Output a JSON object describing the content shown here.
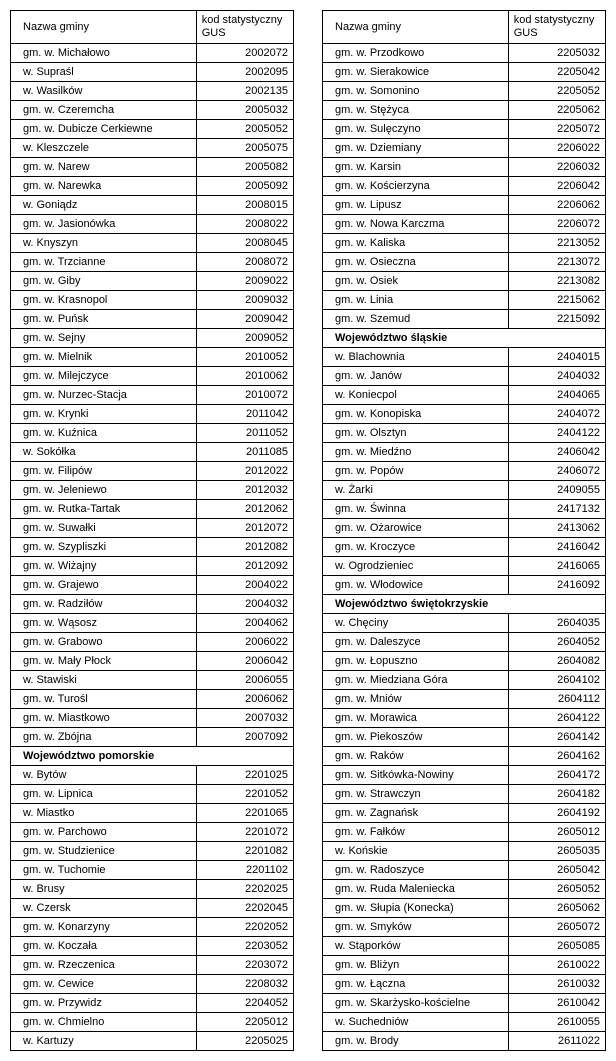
{
  "headers": {
    "name": "Nazwa gminy",
    "code": "kod statystyczny GUS"
  },
  "left": [
    {
      "name": "gm. w. Michałowo",
      "code": "2002072"
    },
    {
      "name": "w. Supraśl",
      "code": "2002095"
    },
    {
      "name": "w. Wasilków",
      "code": "2002135"
    },
    {
      "name": "gm. w. Czeremcha",
      "code": "2005032"
    },
    {
      "name": "gm. w. Dubicze Cerkiewne",
      "code": "2005052"
    },
    {
      "name": "w. Kleszczele",
      "code": "2005075"
    },
    {
      "name": "gm. w. Narew",
      "code": "2005082"
    },
    {
      "name": "gm. w. Narewka",
      "code": "2005092"
    },
    {
      "name": "w. Goniądz",
      "code": "2008015"
    },
    {
      "name": "gm. w. Jasionówka",
      "code": "2008022"
    },
    {
      "name": "w. Knyszyn",
      "code": "2008045"
    },
    {
      "name": "gm. w. Trzcianne",
      "code": "2008072"
    },
    {
      "name": "gm. w. Giby",
      "code": "2009022"
    },
    {
      "name": "gm. w. Krasnopol",
      "code": "2009032"
    },
    {
      "name": "gm. w. Puńsk",
      "code": "2009042"
    },
    {
      "name": "gm. w. Sejny",
      "code": "2009052"
    },
    {
      "name": "gm. w. Mielnik",
      "code": "2010052"
    },
    {
      "name": "gm. w. Milejczyce",
      "code": "2010062"
    },
    {
      "name": "gm. w. Nurzec-Stacja",
      "code": "2010072"
    },
    {
      "name": "gm. w. Krynki",
      "code": "2011042"
    },
    {
      "name": "gm. w. Kuźnica",
      "code": "2011052"
    },
    {
      "name": "w. Sokółka",
      "code": "2011085"
    },
    {
      "name": "gm. w. Filipów",
      "code": "2012022"
    },
    {
      "name": "gm. w. Jeleniewo",
      "code": "2012032"
    },
    {
      "name": "gm. w. Rutka-Tartak",
      "code": "2012062"
    },
    {
      "name": "gm. w. Suwałki",
      "code": "2012072"
    },
    {
      "name": "gm. w. Szypliszki",
      "code": "2012082"
    },
    {
      "name": "gm. w. Wiżajny",
      "code": "2012092"
    },
    {
      "name": "gm. w. Grajewo",
      "code": "2004022"
    },
    {
      "name": "gm. w. Radziłów",
      "code": "2004032"
    },
    {
      "name": "gm. w. Wąsosz",
      "code": "2004062"
    },
    {
      "name": "gm. w. Grabowo",
      "code": "2006022"
    },
    {
      "name": "gm. w. Mały Płock",
      "code": "2006042"
    },
    {
      "name": "w. Stawiski",
      "code": "2006055"
    },
    {
      "name": "gm. w. Turośl",
      "code": "2006062"
    },
    {
      "name": "gm. w. Miastkowo",
      "code": "2007032"
    },
    {
      "name": "gm. w. Zbójna",
      "code": "2007092"
    },
    {
      "section": "Województwo pomorskie"
    },
    {
      "name": "w. Bytów",
      "code": "2201025"
    },
    {
      "name": "gm. w. Lipnica",
      "code": "2201052"
    },
    {
      "name": "w. Miastko",
      "code": "2201065"
    },
    {
      "name": "gm. w. Parchowo",
      "code": "2201072"
    },
    {
      "name": "gm. w. Studzienice",
      "code": "2201082"
    },
    {
      "name": "gm. w. Tuchomie",
      "code": "2201102"
    },
    {
      "name": "w. Brusy",
      "code": "2202025"
    },
    {
      "name": "w. Czersk",
      "code": "2202045"
    },
    {
      "name": "gm. w. Konarzyny",
      "code": "2202052"
    },
    {
      "name": "gm. w. Koczała",
      "code": "2203052"
    },
    {
      "name": "gm. w. Rzeczenica",
      "code": "2203072"
    },
    {
      "name": "gm. w. Cewice",
      "code": "2208032"
    },
    {
      "name": "gm. w. Przywidz",
      "code": "2204052"
    },
    {
      "name": "gm. w. Chmielno",
      "code": "2205012"
    },
    {
      "name": "w. Kartuzy",
      "code": "2205025"
    }
  ],
  "right": [
    {
      "name": "gm. w. Przodkowo",
      "code": "2205032"
    },
    {
      "name": "gm. w. Sierakowice",
      "code": "2205042"
    },
    {
      "name": "gm. w. Somonino",
      "code": "2205052"
    },
    {
      "name": "gm. w. Stężyca",
      "code": "2205062"
    },
    {
      "name": "gm. w. Sulęczyno",
      "code": "2205072"
    },
    {
      "name": "gm. w. Dziemiany",
      "code": "2206022"
    },
    {
      "name": "gm. w. Karsin",
      "code": "2206032"
    },
    {
      "name": "gm. w. Kościerzyna",
      "code": "2206042"
    },
    {
      "name": "gm. w. Lipusz",
      "code": "2206062"
    },
    {
      "name": "gm. w. Nowa Karczma",
      "code": "2206072"
    },
    {
      "name": "gm. w. Kaliska",
      "code": "2213052"
    },
    {
      "name": "gm. w. Osieczna",
      "code": "2213072"
    },
    {
      "name": "gm. w. Osiek",
      "code": "2213082"
    },
    {
      "name": "gm. w. Linia",
      "code": "2215062"
    },
    {
      "name": "gm. w. Szemud",
      "code": "2215092"
    },
    {
      "section": "Województwo śląskie"
    },
    {
      "name": "w. Blachownia",
      "code": "2404015"
    },
    {
      "name": "gm. w. Janów",
      "code": "2404032"
    },
    {
      "name": "w. Koniecpol",
      "code": "2404065"
    },
    {
      "name": "gm. w. Konopiska",
      "code": "2404072"
    },
    {
      "name": "gm. w. Olsztyn",
      "code": "2404122"
    },
    {
      "name": "gm. w. Miedźno",
      "code": "2406042"
    },
    {
      "name": "gm. w. Popów",
      "code": "2406072"
    },
    {
      "name": "w. Żarki",
      "code": "2409055"
    },
    {
      "name": "gm. w. Świnna",
      "code": "2417132"
    },
    {
      "name": "gm. w. Ożarowice",
      "code": "2413062"
    },
    {
      "name": "gm. w. Kroczyce",
      "code": "2416042"
    },
    {
      "name": "w. Ogrodzieniec",
      "code": "2416065"
    },
    {
      "name": "gm. w. Włodowice",
      "code": "2416092"
    },
    {
      "section": "Województwo świętokrzyskie"
    },
    {
      "name": "w. Chęciny",
      "code": "2604035"
    },
    {
      "name": "gm. w. Daleszyce",
      "code": "2604052"
    },
    {
      "name": "gm. w. Łopuszno",
      "code": "2604082"
    },
    {
      "name": "gm. w. Miedziana Góra",
      "code": "2604102"
    },
    {
      "name": "gm. w. Mniów",
      "code": "2604112"
    },
    {
      "name": "gm. w. Morawica",
      "code": "2604122"
    },
    {
      "name": "gm. w. Piekoszów",
      "code": "2604142"
    },
    {
      "name": "gm. w. Raków",
      "code": "2604162"
    },
    {
      "name": "gm. w. Sitkówka-Nowiny",
      "code": "2604172"
    },
    {
      "name": "gm. w. Strawczyn",
      "code": "2604182"
    },
    {
      "name": "gm. w. Zagnańsk",
      "code": "2604192"
    },
    {
      "name": "gm. w. Fałków",
      "code": "2605012"
    },
    {
      "name": "w. Końskie",
      "code": "2605035"
    },
    {
      "name": "gm. w. Radoszyce",
      "code": "2605042"
    },
    {
      "name": "gm. w. Ruda Maleniecka",
      "code": "2605052"
    },
    {
      "name": "gm. w. Słupia (Konecka)",
      "code": "2605062"
    },
    {
      "name": "gm. w. Smyków",
      "code": "2605072"
    },
    {
      "name": "w. Stąporków",
      "code": "2605085"
    },
    {
      "name": "gm. w. Bliżyn",
      "code": "2610022"
    },
    {
      "name": "gm. w. Łączna",
      "code": "2610032"
    },
    {
      "name": "gm. w. Skarżysko-kościelne",
      "code": "2610042"
    },
    {
      "name": "w. Suchedniów",
      "code": "2610055"
    },
    {
      "name": "gm. w. Brody",
      "code": "2611022"
    }
  ]
}
